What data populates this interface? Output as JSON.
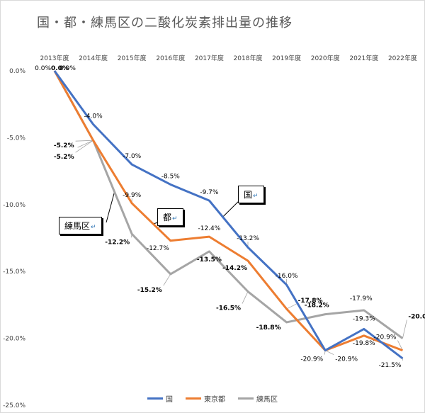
{
  "chart_data": {
    "type": "line",
    "title": "国・都・練馬区の二酸化炭素排出量の推移",
    "categories": [
      "2013年度",
      "2014年度",
      "2015年度",
      "2016年度",
      "2017年度",
      "2018年度",
      "2019年度",
      "2020年度",
      "2021年度",
      "2022年度"
    ],
    "y_ticks": [
      "0.0%",
      "-5.0%",
      "-10.0%",
      "-15.0%",
      "-20.0%",
      "-25.0%"
    ],
    "ylim": [
      -25,
      0
    ],
    "grid": false,
    "legend_position": "bottom",
    "series": [
      {
        "name": "国",
        "color": "#4472c4",
        "values": [
          0.0,
          -4.0,
          -7.0,
          -8.5,
          -9.7,
          -13.2,
          -16.0,
          -20.9,
          -19.3,
          -21.5
        ],
        "labels": [
          "0.0%",
          "-4.0%",
          "-7.0%",
          "-8.5%",
          "-9.7%",
          "-13.2%",
          "-16.0%",
          "-20.9%",
          "-19.3%",
          "-21.5%"
        ]
      },
      {
        "name": "東京都",
        "color": "#ed7d31",
        "values": [
          0.0,
          -5.2,
          -9.9,
          -12.7,
          -12.4,
          -14.2,
          -17.8,
          -20.9,
          -19.8,
          -20.9
        ],
        "labels": [
          "0.0%",
          "-5.2%",
          "-9.9%",
          "-12.7%",
          "-12.4%",
          "-14.2%",
          "-17.8%",
          "-20.9%",
          "-19.8%",
          "-20.9%"
        ]
      },
      {
        "name": "練馬区",
        "color": "#a5a5a5",
        "values": [
          0.0,
          -5.2,
          -12.2,
          -15.2,
          -13.5,
          -16.5,
          -18.8,
          -18.2,
          -17.9,
          -20.0
        ],
        "labels": [
          "0.0%",
          "-5.2%",
          "-12.2%",
          "-15.2%",
          "-13.5%",
          "-16.5%",
          "-18.8%",
          "-18.2%",
          "-17.9%",
          "-20.0%"
        ]
      }
    ],
    "callouts": [
      {
        "text": "国",
        "series": "国"
      },
      {
        "text": "都",
        "series": "東京都"
      },
      {
        "text": "練馬区",
        "series": "練馬区"
      }
    ]
  }
}
